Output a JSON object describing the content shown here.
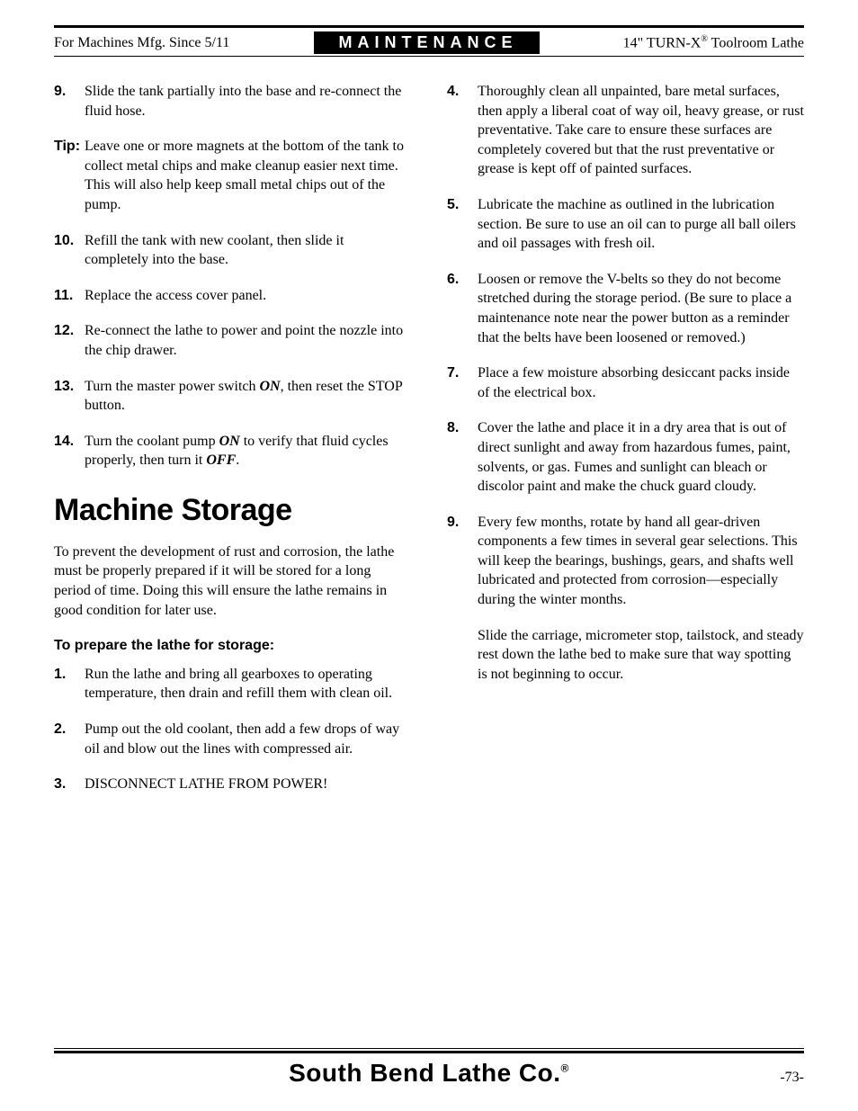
{
  "header": {
    "left": "For Machines Mfg. Since 5/11",
    "center": "MAINTENANCE",
    "right_pre": "14\" TURN-X",
    "right_sup": "®",
    "right_post": " Toolroom Lathe"
  },
  "left_col": {
    "steps_a": [
      {
        "n": "9.",
        "t": "Slide the tank partially into the base and re-connect the fluid hose."
      }
    ],
    "tip": {
      "label": "Tip:",
      "text": "Leave one or more magnets at the bottom of the tank to collect metal chips and make cleanup easier next time. This will also help keep small metal chips out of the pump."
    },
    "steps_b": [
      {
        "n": "10.",
        "t": "Refill the tank with new coolant, then slide it completely into the base."
      },
      {
        "n": "11.",
        "t": "Replace the access cover panel."
      },
      {
        "n": "12.",
        "t": "Re-connect the lathe to power and point the nozzle into the chip drawer."
      },
      {
        "n": "13.",
        "pre": "Turn the master power switch ",
        "em": "ON",
        "post": ", then reset the STOP button."
      },
      {
        "n": "14.",
        "pre": "Turn the coolant pump ",
        "em": "ON",
        "mid": " to verify that fluid cycles properly, then turn it ",
        "em2": "OFF",
        "post": "."
      }
    ],
    "section_title": "Machine Storage",
    "intro": "To prevent the development of rust and corrosion, the lathe must be properly prepared if it will be stored for a long period of time. Doing this will ensure the lathe remains in good condition for later use.",
    "subhead": "To prepare the lathe for storage:",
    "prep_steps": [
      {
        "n": "1.",
        "t": "Run the lathe and bring all gearboxes to operating temperature, then drain and refill them with clean oil."
      },
      {
        "n": "2.",
        "t": "Pump out the old coolant, then add a few drops of way oil and blow out the lines with compressed air."
      },
      {
        "n": "3.",
        "t": "DISCONNECT LATHE FROM POWER!"
      }
    ]
  },
  "right_col": {
    "steps": [
      {
        "n": "4.",
        "t": "Thoroughly clean all unpainted, bare metal surfaces, then apply a liberal coat of way oil, heavy grease, or rust preventative. Take care to ensure these surfaces are completely covered but that the rust preventative or grease is kept off of painted surfaces."
      },
      {
        "n": "5.",
        "t": "Lubricate the machine as outlined in the lubrication section. Be sure to use an oil can to purge all ball oilers and oil passages with fresh oil."
      },
      {
        "n": "6.",
        "t": "Loosen or remove the V-belts so they do not become stretched during the storage period. (Be sure to place a maintenance note near the power button as a reminder that the belts have been loosened or removed.)"
      },
      {
        "n": "7.",
        "t": "Place a few moisture absorbing desiccant packs inside of the electrical box."
      },
      {
        "n": "8.",
        "t": "Cover the lathe and place it in a dry area that is out of direct sunlight and away from hazardous fumes, paint, solvents, or gas. Fumes and sunlight can bleach or discolor paint and make the chuck guard cloudy."
      },
      {
        "n": "9.",
        "t": "Every few months, rotate by hand all gear-driven components a few times in several gear selections. This will keep the bearings, bushings, gears, and shafts well lubricated and protected from corrosion—especially during the winter months.",
        "sub": "Slide the carriage, micrometer stop, tailstock, and steady rest down the lathe bed to make sure that way spotting is not beginning to occur."
      }
    ]
  },
  "footer": {
    "brand_pre": "South Bend Lathe Co.",
    "brand_sup": "®",
    "page": "-73-"
  }
}
